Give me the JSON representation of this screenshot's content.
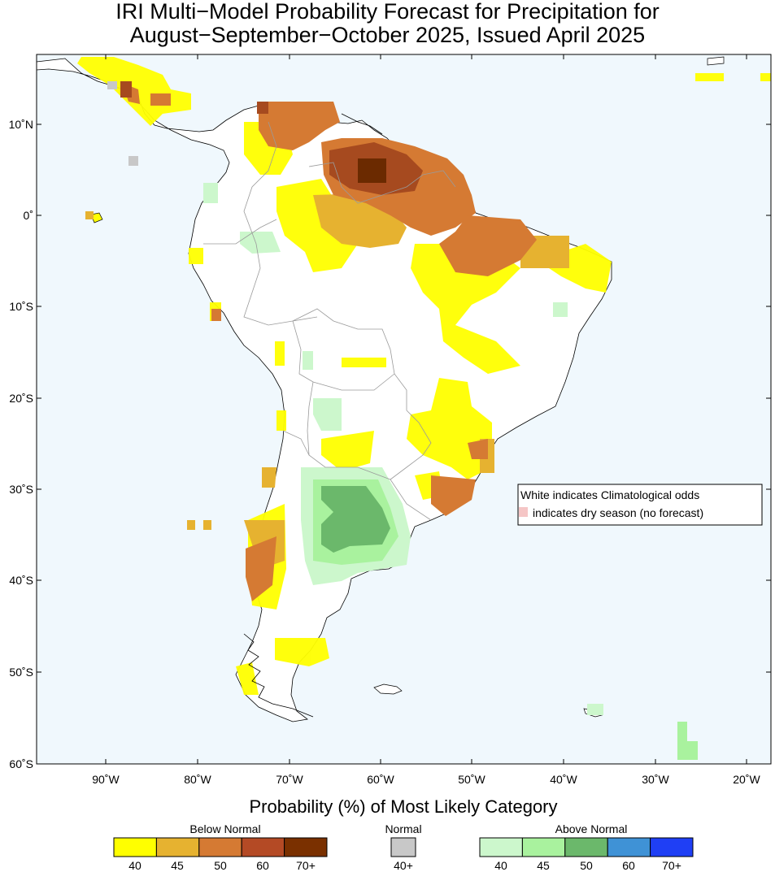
{
  "title_line1": "IRI Multi−Model Probability Forecast for Precipitation for",
  "title_line2": "August−September−October 2025, Issued April 2025",
  "map": {
    "background_color": "#f0f8fd",
    "lon_ticks": [
      "90˚W",
      "80˚W",
      "70˚W",
      "60˚W",
      "50˚W",
      "40˚W",
      "30˚W",
      "20˚W"
    ],
    "lat_ticks": [
      "10˚N",
      "0˚",
      "10˚S",
      "20˚S",
      "30˚S",
      "40˚S",
      "50˚S",
      "60˚S"
    ]
  },
  "note": {
    "line1": "White indicates Climatological odds",
    "line2": "indicates dry season (no forecast)",
    "dry_color": "#f5c6c6"
  },
  "legend": {
    "title": "Probability (%) of Most Likely Category",
    "below_normal": {
      "label": "Below Normal",
      "colors": [
        "#ffff00",
        "#e6b230",
        "#d57a33",
        "#b44a25",
        "#7a3000"
      ],
      "ticks": [
        "40",
        "45",
        "50",
        "60",
        "70+"
      ]
    },
    "normal": {
      "label": "Normal",
      "colors": [
        "#c8c8c8"
      ],
      "ticks": [
        "40+"
      ]
    },
    "above_normal": {
      "label": "Above Normal",
      "colors": [
        "#ccf7cc",
        "#a9f29e",
        "#6bb86b",
        "#3f92d6",
        "#1f3ff5"
      ],
      "ticks": [
        "40",
        "45",
        "50",
        "60",
        "70+"
      ]
    }
  }
}
